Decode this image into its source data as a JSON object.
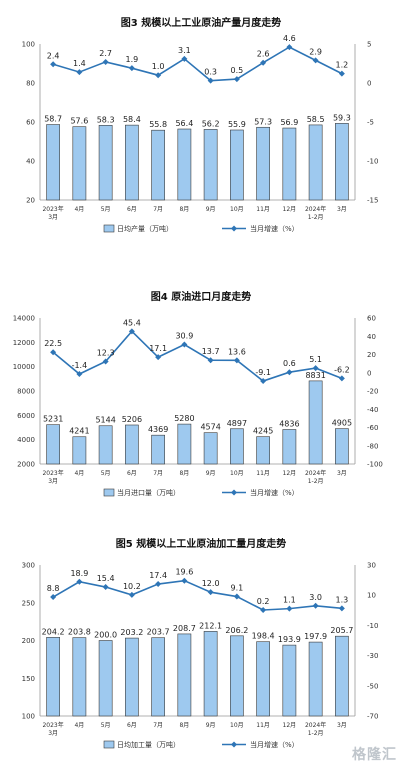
{
  "chart_data": [
    {
      "type": "bar",
      "title": "图3  规模以上工业原油产量月度走势",
      "categories": [
        "2023年\n3月",
        "4月",
        "5月",
        "6月",
        "7月",
        "8月",
        "9月",
        "10月",
        "11月",
        "12月",
        "2024年\n1-2月",
        "3月"
      ],
      "series": [
        {
          "name": "日均产量（万吨）",
          "type": "bar",
          "axis": "left",
          "color": "#9ec9ef",
          "values": [
            58.7,
            57.6,
            58.3,
            58.4,
            55.8,
            56.4,
            56.2,
            55.9,
            57.3,
            56.9,
            58.5,
            59.3
          ]
        },
        {
          "name": "当月增速（%）",
          "type": "line",
          "axis": "right",
          "color": "#2e75b6",
          "values": [
            2.4,
            1.4,
            2.7,
            1.9,
            1.0,
            3.1,
            0.3,
            0.5,
            2.6,
            4.6,
            2.9,
            1.2
          ]
        }
      ],
      "ylim": [
        20,
        100
      ],
      "yticks": [
        20,
        40,
        60,
        80,
        100
      ],
      "y2lim": [
        -15,
        5
      ],
      "y2ticks": [
        -15,
        -10,
        -5,
        0,
        5
      ],
      "grid": false,
      "legend": "bottom"
    },
    {
      "type": "bar",
      "title": "图4  原油进口月度走势",
      "categories": [
        "2023年\n3月",
        "4月",
        "5月",
        "6月",
        "7月",
        "8月",
        "9月",
        "10月",
        "11月",
        "12月",
        "2024年\n1-2月",
        "3月"
      ],
      "series": [
        {
          "name": "当月进口量（万吨）",
          "type": "bar",
          "axis": "left",
          "color": "#9ec9ef",
          "values": [
            5231,
            4241,
            5144,
            5206,
            4369,
            5280,
            4574,
            4897,
            4245,
            4836,
            8831,
            4905
          ]
        },
        {
          "name": "当月增速（%）",
          "type": "line",
          "axis": "right",
          "color": "#2e75b6",
          "values": [
            22.5,
            -1.4,
            12.3,
            45.4,
            17.1,
            30.9,
            13.7,
            13.6,
            -9.1,
            0.6,
            5.1,
            -6.2
          ]
        }
      ],
      "ylim": [
        2000,
        14000
      ],
      "yticks": [
        2000,
        4000,
        6000,
        8000,
        10000,
        12000,
        14000
      ],
      "y2lim": [
        -100,
        60
      ],
      "y2ticks": [
        -100,
        -80,
        -60,
        -40,
        -20,
        0,
        20,
        40,
        60
      ],
      "grid": false,
      "legend": "bottom"
    },
    {
      "type": "bar",
      "title": "图5  规模以上工业原油加工量月度走势",
      "categories": [
        "2023年\n3月",
        "4月",
        "5月",
        "6月",
        "7月",
        "8月",
        "9月",
        "10月",
        "11月",
        "12月",
        "2024年\n1-2月",
        "3月"
      ],
      "series": [
        {
          "name": "日均加工量（万吨）",
          "type": "bar",
          "axis": "left",
          "color": "#9ec9ef",
          "values": [
            204.2,
            203.8,
            200.0,
            203.2,
            203.7,
            208.7,
            212.1,
            206.2,
            198.4,
            193.9,
            197.9,
            205.7
          ]
        },
        {
          "name": "当月增速（%）",
          "type": "line",
          "axis": "right",
          "color": "#2e75b6",
          "values": [
            8.8,
            18.9,
            15.4,
            10.2,
            17.4,
            19.6,
            12.0,
            9.1,
            0.2,
            1.1,
            3.0,
            1.3
          ]
        }
      ],
      "ylim": [
        100,
        300
      ],
      "yticks": [
        100,
        150,
        200,
        250,
        300
      ],
      "y2lim": [
        -70,
        30
      ],
      "y2ticks": [
        -70,
        -50,
        -30,
        -10,
        10,
        30
      ],
      "grid": false,
      "legend": "bottom"
    }
  ],
  "watermark": "格隆汇"
}
